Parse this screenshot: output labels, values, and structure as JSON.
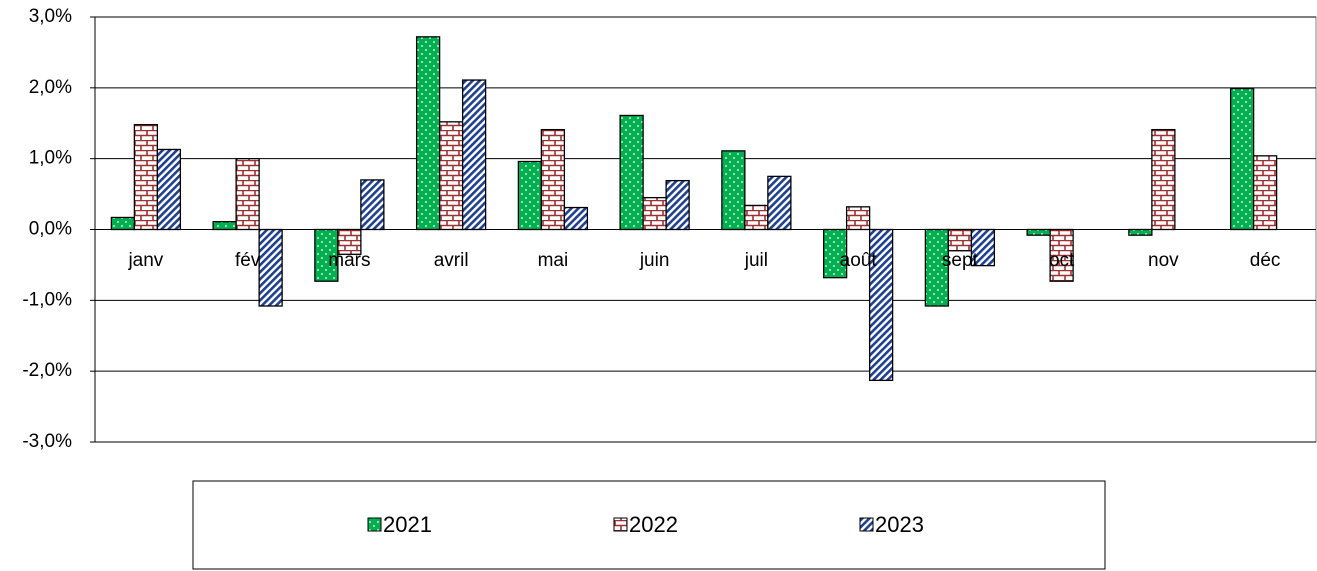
{
  "chart_data": {
    "type": "bar",
    "categories": [
      "janv",
      "fév",
      "mars",
      "avril",
      "mai",
      "juin",
      "juil",
      "août",
      "sept",
      "oct",
      "nov",
      "déc"
    ],
    "series": [
      {
        "name": "2021",
        "color": "#00b050",
        "values": [
          0.17,
          0.11,
          -0.73,
          2.72,
          0.96,
          1.61,
          1.11,
          -0.68,
          -1.08,
          -0.08,
          -0.08,
          1.99
        ]
      },
      {
        "name": "2022",
        "color": "#993333",
        "values": [
          1.48,
          1.0,
          -0.35,
          1.52,
          1.41,
          0.45,
          0.34,
          0.32,
          -0.3,
          -0.73,
          1.41,
          1.04
        ]
      },
      {
        "name": "2023",
        "color": "#1f3f8f",
        "values": [
          1.13,
          -1.08,
          0.7,
          2.11,
          0.31,
          0.69,
          0.75,
          -2.13,
          -0.51,
          null,
          null,
          null
        ]
      }
    ],
    "ylim": [
      -3,
      3
    ],
    "yticks": [
      {
        "value": -3,
        "label": "-3,0%"
      },
      {
        "value": -2,
        "label": "-2,0%"
      },
      {
        "value": -1,
        "label": "-1,0%"
      },
      {
        "value": 0,
        "label": "0,0%"
      },
      {
        "value": 1,
        "label": "1,0%"
      },
      {
        "value": 2,
        "label": "2,0%"
      },
      {
        "value": 3,
        "label": "3,0%"
      }
    ],
    "grid": true
  }
}
